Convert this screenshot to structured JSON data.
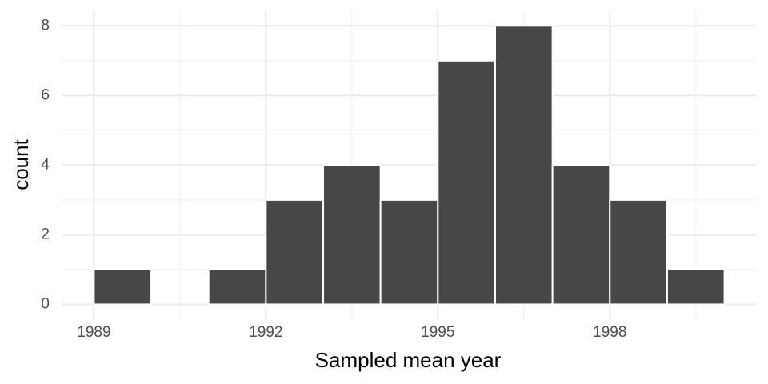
{
  "chart_data": {
    "type": "histogram",
    "x_label": "Sampled mean year",
    "y_label": "count",
    "bins": [
      1989,
      1990,
      1991,
      1992,
      1993,
      1994,
      1995,
      1996,
      1997,
      1998,
      1999,
      2000
    ],
    "values": [
      1,
      0,
      1,
      3,
      4,
      3,
      7,
      8,
      4,
      3,
      1
    ],
    "color": "#474747",
    "xlim": [
      1988.45,
      2000.55
    ],
    "xticks": [
      1989,
      1992,
      1995,
      1998
    ],
    "ylim": [
      -0.45,
      8.42
    ],
    "yticks": [
      0,
      2,
      4,
      6,
      8
    ],
    "grid": true
  }
}
